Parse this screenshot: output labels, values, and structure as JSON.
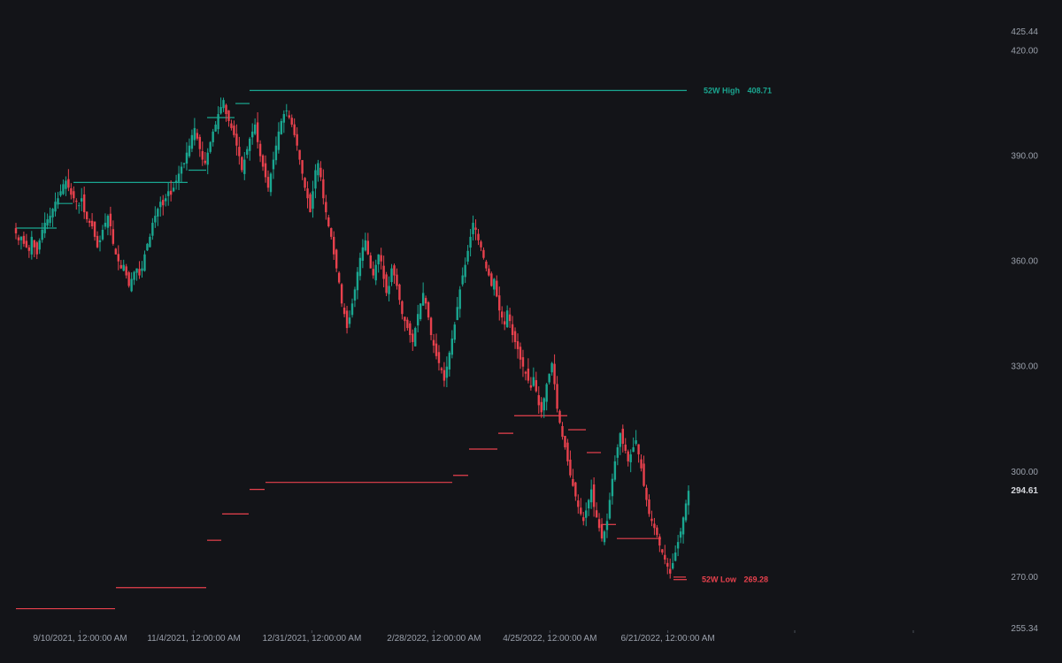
{
  "chart_data": {
    "type": "candlestick",
    "title": "",
    "xlabel": "",
    "ylabel": "",
    "ylim": [
      255.34,
      425.44
    ],
    "y_ticks": [
      {
        "value": 425.44,
        "label": "425.44"
      },
      {
        "value": 420.0,
        "label": "420.00"
      },
      {
        "value": 390.0,
        "label": "390.00"
      },
      {
        "value": 360.0,
        "label": "360.00"
      },
      {
        "value": 330.0,
        "label": "330.00"
      },
      {
        "value": 300.0,
        "label": "300.00"
      },
      {
        "value": 270.0,
        "label": "270.00"
      },
      {
        "value": 255.34,
        "label": "255.34"
      }
    ],
    "x_ticks": [
      {
        "date": "2021-09-10",
        "label": "9/10/2021, 12:00:00 AM"
      },
      {
        "date": "2021-11-04",
        "label": "11/4/2021, 12:00:00 AM"
      },
      {
        "date": "2021-12-31",
        "label": "12/31/2021, 12:00:00 AM"
      },
      {
        "date": "2022-02-28",
        "label": "2/28/2022, 12:00:00 AM"
      },
      {
        "date": "2022-04-25",
        "label": "4/25/2022, 12:00:00 AM"
      },
      {
        "date": "2022-06-21",
        "label": "6/21/2022, 12:00:00 AM"
      }
    ],
    "last_price": {
      "value": 294.61,
      "label": "294.61"
    },
    "high_52w": {
      "label": "52W High",
      "value_label": "408.71",
      "value": 408.71
    },
    "low_52w": {
      "label": "52W Low",
      "value_label": "269.28",
      "value": 269.28
    },
    "colors": {
      "up": "#1aa690",
      "down": "#e8414d",
      "background": "#131418",
      "axis_text": "#9aa0ab"
    },
    "closes": [
      368,
      366,
      367,
      365,
      364,
      363,
      367,
      364,
      362,
      366,
      369,
      371,
      372,
      373,
      375,
      377,
      378,
      380,
      382,
      383,
      381,
      379,
      378,
      377,
      376,
      378,
      374,
      372,
      371,
      370,
      367,
      364,
      366,
      369,
      371,
      373,
      370,
      365,
      362,
      360,
      358,
      359,
      356,
      353,
      355,
      357,
      358,
      356,
      358,
      362,
      365,
      367,
      371,
      373,
      375,
      377,
      376,
      378,
      380,
      379,
      381,
      383,
      385,
      387,
      388,
      391,
      393,
      396,
      398,
      395,
      392,
      389,
      388,
      391,
      394,
      397,
      399,
      402,
      404,
      406,
      402,
      400,
      398,
      396,
      393,
      390,
      386,
      389,
      392,
      395,
      397,
      399,
      394,
      390,
      387,
      384,
      381,
      385,
      389,
      393,
      397,
      400,
      402,
      403,
      401,
      399,
      396,
      393,
      389,
      385,
      381,
      378,
      374,
      380,
      386,
      388,
      384,
      378,
      374,
      370,
      367,
      362,
      358,
      354,
      348,
      345,
      341,
      344,
      348,
      352,
      357,
      361,
      364,
      366,
      362,
      358,
      356,
      359,
      362,
      360,
      355,
      351,
      353,
      358,
      356,
      353,
      349,
      345,
      343,
      341,
      339,
      337,
      341,
      345,
      348,
      351,
      348,
      344,
      339,
      336,
      333,
      331,
      329,
      326,
      330,
      334,
      338,
      342,
      347,
      352,
      356,
      359,
      363,
      367,
      371,
      369,
      366,
      364,
      361,
      358,
      356,
      353,
      355,
      350,
      346,
      344,
      342,
      346,
      343,
      339,
      337,
      335,
      332,
      330,
      328,
      326,
      324,
      327,
      323,
      319,
      317,
      321,
      325,
      328,
      331,
      325,
      318,
      314,
      310,
      307,
      303,
      299,
      296,
      293,
      290,
      288,
      286,
      289,
      292,
      295,
      290,
      287,
      284,
      281,
      283,
      286,
      292,
      298,
      303,
      307,
      311,
      308,
      306,
      303,
      305,
      307,
      309,
      305,
      301,
      296,
      292,
      288,
      286,
      284,
      282,
      279,
      277,
      275,
      273,
      271,
      274,
      277,
      280,
      283,
      287,
      291,
      294.61
    ]
  }
}
